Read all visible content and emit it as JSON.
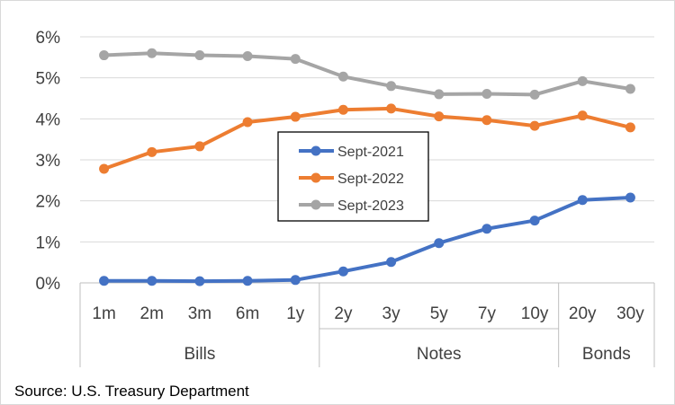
{
  "chart_data": {
    "type": "line",
    "categories": [
      "1m",
      "2m",
      "3m",
      "6m",
      "1y",
      "2y",
      "3y",
      "5y",
      "7y",
      "10y",
      "20y",
      "30y"
    ],
    "groups": [
      {
        "label": "Bills",
        "categories": [
          "1m",
          "2m",
          "3m",
          "6m",
          "1y"
        ]
      },
      {
        "label": "Notes",
        "categories": [
          "2y",
          "3y",
          "5y",
          "7y",
          "10y"
        ]
      },
      {
        "label": "Bonds",
        "categories": [
          "20y",
          "30y"
        ]
      }
    ],
    "series": [
      {
        "name": "Sept-2021",
        "color": "#4472c4",
        "values": [
          0.05,
          0.05,
          0.04,
          0.05,
          0.07,
          0.28,
          0.51,
          0.97,
          1.32,
          1.52,
          2.02,
          2.08
        ]
      },
      {
        "name": "Sept-2022",
        "color": "#ed7d31",
        "values": [
          2.78,
          3.19,
          3.33,
          3.92,
          4.05,
          4.22,
          4.25,
          4.06,
          3.97,
          3.83,
          4.08,
          3.79
        ]
      },
      {
        "name": "Sept-2023",
        "color": "#a5a5a5",
        "values": [
          5.55,
          5.6,
          5.55,
          5.53,
          5.46,
          5.03,
          4.8,
          4.6,
          4.61,
          4.59,
          4.92,
          4.73
        ]
      }
    ],
    "ylim": [
      0,
      6
    ],
    "yticks": [
      "0%",
      "1%",
      "2%",
      "3%",
      "4%",
      "5%",
      "6%"
    ],
    "grid": true,
    "legend": "center",
    "title": "",
    "xlabel": "",
    "ylabel": ""
  },
  "source": "Source: U.S. Treasury Department"
}
